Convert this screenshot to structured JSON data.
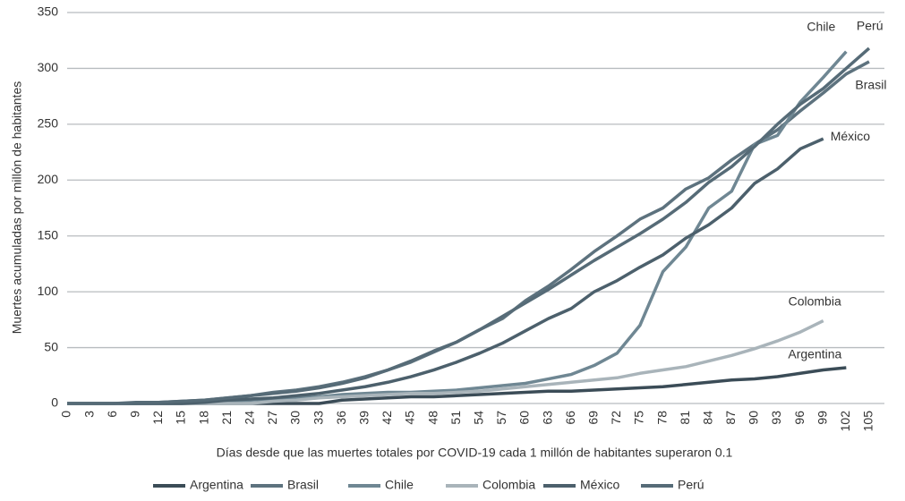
{
  "chart_data": {
    "type": "line",
    "xlabel": "Días desde que las muertes totales por COVID-19 cada 1 millón de habitantes superaron 0.1",
    "ylabel": "Muertes acumuladas por millón de habitantes",
    "x": [
      0,
      3,
      6,
      9,
      12,
      15,
      18,
      21,
      24,
      27,
      30,
      33,
      36,
      39,
      42,
      45,
      48,
      51,
      54,
      57,
      60,
      63,
      66,
      69,
      72,
      75,
      78,
      81,
      84,
      87,
      90,
      93,
      96,
      99,
      102,
      105
    ],
    "xlim": [
      0,
      107
    ],
    "xticks": [
      0,
      3,
      6,
      9,
      12,
      15,
      18,
      21,
      24,
      27,
      30,
      33,
      36,
      39,
      42,
      45,
      48,
      51,
      54,
      57,
      60,
      63,
      66,
      69,
      72,
      75,
      78,
      81,
      84,
      87,
      90,
      93,
      96,
      99,
      102,
      105
    ],
    "ylim": [
      0,
      350
    ],
    "yticks": [
      0,
      50,
      100,
      150,
      200,
      250,
      300,
      350
    ],
    "grid": true,
    "legend": "bottom",
    "series": [
      {
        "name": "Argentina",
        "color": "#3b4c57",
        "values": [
          0,
          0,
          0,
          0,
          0,
          0,
          0,
          0,
          0,
          0,
          0,
          0,
          3,
          4,
          5,
          6,
          6,
          7,
          8,
          9,
          10,
          11,
          11,
          12,
          13,
          14,
          15,
          17,
          19,
          21,
          22,
          24,
          27,
          30,
          32,
          null
        ]
      },
      {
        "name": "Brasil",
        "color": "#5d727e",
        "values": [
          0,
          0,
          0,
          0,
          1,
          2,
          3,
          5,
          7,
          10,
          12,
          15,
          19,
          24,
          30,
          37,
          46,
          55,
          66,
          76,
          92,
          105,
          120,
          136,
          150,
          165,
          175,
          192,
          202,
          218,
          232,
          245,
          262,
          278,
          295,
          306
        ]
      },
      {
        "name": "Chile",
        "color": "#6f8793",
        "values": [
          0,
          0,
          0,
          0,
          0,
          0,
          1,
          2,
          3,
          4,
          5,
          6,
          8,
          9,
          10,
          10,
          11,
          12,
          14,
          16,
          18,
          22,
          26,
          34,
          45,
          70,
          118,
          140,
          175,
          190,
          232,
          240,
          270,
          292,
          315,
          null
        ]
      },
      {
        "name": "Colombia",
        "color": "#a9b4ba",
        "values": [
          0,
          0,
          0,
          0,
          0,
          0,
          0,
          0,
          0,
          2,
          3,
          5,
          6,
          7,
          8,
          9,
          9,
          10,
          11,
          13,
          15,
          17,
          19,
          21,
          23,
          27,
          30,
          33,
          38,
          43,
          49,
          56,
          64,
          74,
          null,
          null
        ]
      },
      {
        "name": "México",
        "color": "#4c606c",
        "values": [
          0,
          0,
          0,
          0,
          0,
          0,
          1,
          3,
          4,
          5,
          7,
          9,
          12,
          15,
          19,
          24,
          30,
          37,
          45,
          54,
          65,
          76,
          85,
          100,
          110,
          122,
          133,
          148,
          160,
          175,
          197,
          210,
          228,
          237,
          null,
          null
        ]
      },
      {
        "name": "Perú",
        "color": "#566b77",
        "values": [
          0,
          0,
          0,
          1,
          1,
          2,
          3,
          5,
          7,
          9,
          11,
          14,
          18,
          23,
          30,
          38,
          47,
          55,
          66,
          78,
          90,
          102,
          115,
          128,
          140,
          152,
          165,
          180,
          198,
          212,
          230,
          250,
          268,
          282,
          300,
          318
        ]
      }
    ]
  }
}
